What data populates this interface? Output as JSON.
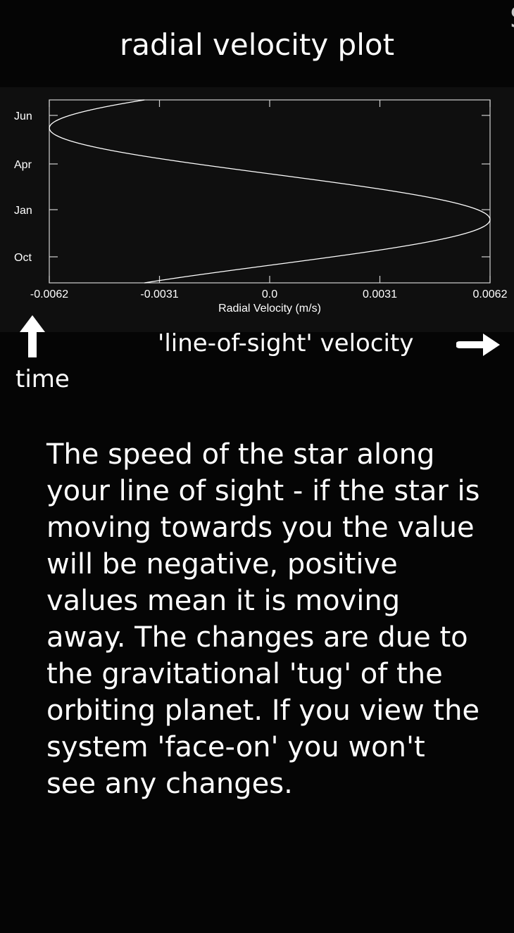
{
  "header": {
    "title": "radial velocity plot"
  },
  "chart_data": {
    "type": "line",
    "title": "",
    "xlabel": "Radial Velocity (m/s)",
    "ylabel": "",
    "xlim": [
      -0.0062,
      0.0062
    ],
    "x_ticks": [
      "-0.0062",
      "-0.0031",
      "0.0",
      "0.0031",
      "0.0062"
    ],
    "y_ticks": [
      "Oct",
      "Jan",
      "Apr",
      "Jun"
    ],
    "grid": false,
    "legend": "none",
    "line_color": "#ffffff",
    "background": "#0f0f0f",
    "series": [
      {
        "x": [
          -0.0062,
          -0.0062,
          -0.0058,
          -0.0049,
          -0.0035,
          -0.0018,
          0.0,
          0.0018,
          0.0035,
          0.0049,
          0.0058,
          0.0062,
          0.0058,
          0.0049,
          0.0035,
          0.0018,
          0.0,
          -0.0018,
          -0.0035,
          -0.0049,
          -0.0058,
          -0.0062,
          -0.0058,
          -0.0049,
          -0.0045
        ],
        "y": [
          "Jun",
          "Jun",
          "May",
          "Apr",
          "Apr",
          "Mar",
          "Feb",
          "Feb",
          "Jan",
          "Jan",
          "Jan",
          "Dec",
          "Dec",
          "Nov",
          "Nov",
          "Oct",
          "Oct",
          "Sep",
          "Sep",
          "Aug",
          "Aug",
          "Jul",
          "Jul",
          "Jun",
          "Jun"
        ]
      }
    ]
  },
  "axis_labels": {
    "time": "time",
    "line_of_sight": "'line-of-sight' velocity"
  },
  "description": "The speed of the star along your line of sight - if the star is moving towards you the value will be negative, positive values mean it is moving away. The changes are due to the gravitational 'tug' of the orbiting planet. If you view the system 'face-on' you won't see any changes.",
  "icons": {
    "up": "up-arrow-icon",
    "right": "right-arrow-icon"
  }
}
